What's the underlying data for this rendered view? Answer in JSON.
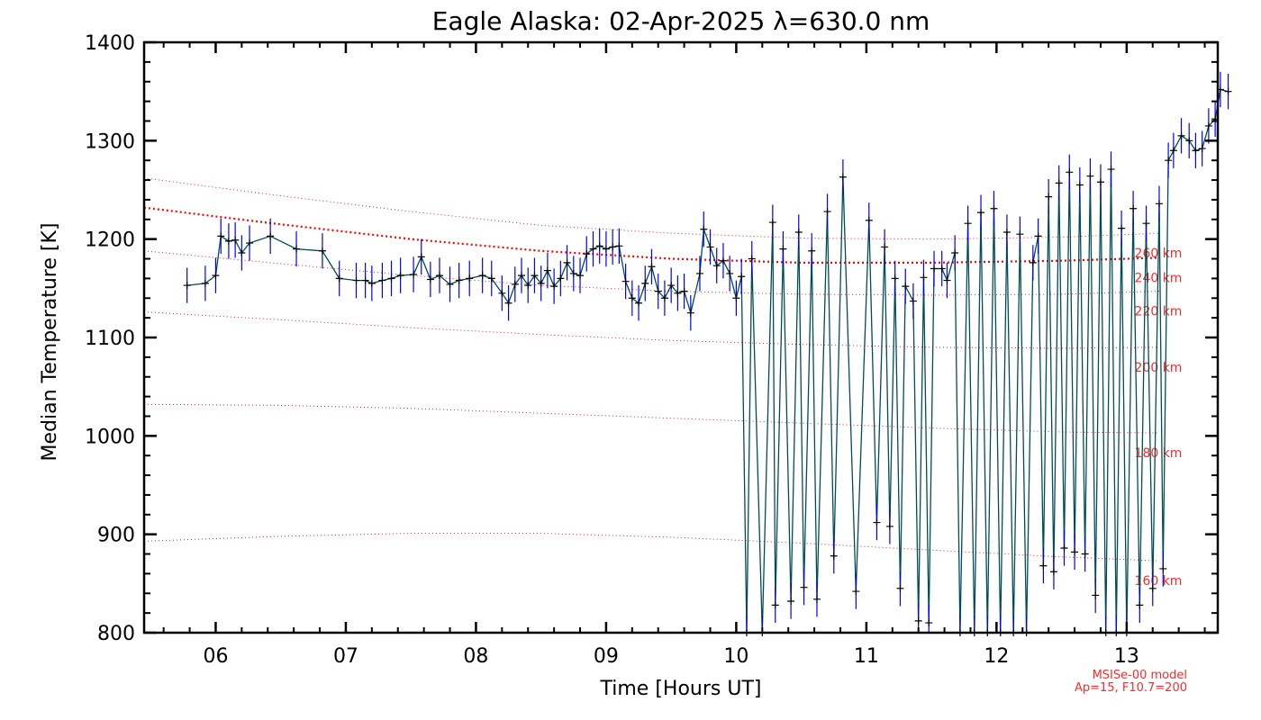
{
  "colors": {
    "background": "#ffffff",
    "axis": "#000000",
    "data_line": "#004d57",
    "error_bar": "#0000ff",
    "point_marker": "#000000",
    "model_line": "#ff0000",
    "model_text": "#ff2a2a"
  },
  "chart_data": {
    "type": "line",
    "title": "Eagle Alaska: 02-Apr-2025 λ=630.0 nm",
    "xlabel": "Time [Hours UT]",
    "ylabel": "Median Temperature [K]",
    "xlim": [
      5.45,
      13.7
    ],
    "ylim": [
      800,
      1400
    ],
    "x_ticks": [
      6,
      7,
      8,
      9,
      10,
      11,
      12,
      13
    ],
    "x_tick_labels": [
      "06",
      "07",
      "08",
      "09",
      "10",
      "11",
      "12",
      "13"
    ],
    "y_ticks": [
      800,
      900,
      1000,
      1100,
      1200,
      1300,
      1400
    ],
    "y_tick_labels": [
      "800",
      "900",
      "1000",
      "1100",
      "1200",
      "1300",
      "1400"
    ],
    "grid": false,
    "series": [
      {
        "error": 18,
        "points": [
          [
            5.78,
            1153
          ],
          [
            5.92,
            1155
          ],
          [
            6.0,
            1163
          ],
          [
            6.04,
            1203
          ],
          [
            6.1,
            1198
          ],
          [
            6.15,
            1199
          ],
          [
            6.2,
            1186
          ],
          [
            6.26,
            1196
          ],
          [
            6.42,
            1203
          ],
          [
            6.62,
            1190
          ],
          [
            6.82,
            1188
          ],
          [
            6.95,
            1160
          ],
          [
            7.08,
            1158
          ],
          [
            7.15,
            1158
          ],
          [
            7.2,
            1155
          ],
          [
            7.28,
            1158
          ],
          [
            7.35,
            1160
          ],
          [
            7.42,
            1163
          ],
          [
            7.52,
            1164
          ],
          [
            7.58,
            1182
          ],
          [
            7.65,
            1159
          ],
          [
            7.72,
            1163
          ],
          [
            7.8,
            1154
          ],
          [
            7.87,
            1158
          ],
          [
            7.95,
            1160
          ],
          [
            8.05,
            1163
          ],
          [
            8.12,
            1160
          ],
          [
            8.2,
            1145
          ],
          [
            8.25,
            1135
          ],
          [
            8.3,
            1154
          ],
          [
            8.35,
            1163
          ],
          [
            8.4,
            1153
          ],
          [
            8.45,
            1163
          ],
          [
            8.5,
            1155
          ],
          [
            8.55,
            1168
          ],
          [
            8.6,
            1152
          ],
          [
            8.65,
            1160
          ],
          [
            8.7,
            1176
          ],
          [
            8.75,
            1165
          ],
          [
            8.8,
            1163
          ],
          [
            8.85,
            1185
          ],
          [
            8.9,
            1190
          ],
          [
            8.95,
            1193
          ],
          [
            9.0,
            1190
          ],
          [
            9.05,
            1192
          ],
          [
            9.1,
            1193
          ],
          [
            9.15,
            1157
          ],
          [
            9.2,
            1140
          ],
          [
            9.25,
            1135
          ],
          [
            9.3,
            1155
          ],
          [
            9.35,
            1172
          ],
          [
            9.4,
            1147
          ],
          [
            9.45,
            1140
          ],
          [
            9.5,
            1153
          ],
          [
            9.55,
            1145
          ],
          [
            9.6,
            1147
          ],
          [
            9.65,
            1125
          ],
          [
            9.72,
            1165
          ],
          [
            9.75,
            1210
          ],
          [
            9.8,
            1192
          ],
          [
            9.85,
            1173
          ],
          [
            9.9,
            1178
          ],
          [
            9.95,
            1165
          ],
          [
            10.0,
            1140
          ],
          [
            10.04,
            1162
          ],
          [
            10.08,
            800
          ],
          [
            10.12,
            1180
          ],
          [
            10.2,
            800
          ],
          [
            10.28,
            1217
          ],
          [
            10.3,
            828
          ],
          [
            10.36,
            1190
          ],
          [
            10.42,
            832
          ],
          [
            10.48,
            1207
          ],
          [
            10.52,
            846
          ],
          [
            10.58,
            1188
          ],
          [
            10.62,
            834
          ],
          [
            10.7,
            1228
          ],
          [
            10.75,
            878
          ],
          [
            10.82,
            1263
          ],
          [
            10.92,
            842
          ],
          [
            11.02,
            1219
          ],
          [
            11.08,
            912
          ],
          [
            11.14,
            1192
          ],
          [
            11.18,
            908
          ],
          [
            11.22,
            1160
          ],
          [
            11.26,
            845
          ],
          [
            11.3,
            1152
          ],
          [
            11.36,
            1137
          ],
          [
            11.4,
            812
          ],
          [
            11.44,
            1161
          ],
          [
            11.48,
            810
          ],
          [
            11.52,
            1170
          ],
          [
            11.58,
            1170
          ],
          [
            11.62,
            1158
          ],
          [
            11.68,
            1186
          ],
          [
            11.72,
            800
          ],
          [
            11.78,
            1216
          ],
          [
            11.83,
            800
          ],
          [
            11.88,
            1227
          ],
          [
            11.93,
            800
          ],
          [
            11.98,
            1231
          ],
          [
            12.03,
            800
          ],
          [
            12.08,
            1207
          ],
          [
            12.13,
            800
          ],
          [
            12.18,
            1205
          ],
          [
            12.23,
            800
          ],
          [
            12.28,
            1176
          ],
          [
            12.32,
            1203
          ],
          [
            12.36,
            868
          ],
          [
            12.4,
            1243
          ],
          [
            12.44,
            862
          ],
          [
            12.48,
            1257
          ],
          [
            12.52,
            886
          ],
          [
            12.56,
            1268
          ],
          [
            12.6,
            882
          ],
          [
            12.64,
            1255
          ],
          [
            12.68,
            880
          ],
          [
            12.72,
            1264
          ],
          [
            12.76,
            838
          ],
          [
            12.8,
            1258
          ],
          [
            12.84,
            800
          ],
          [
            12.88,
            1271
          ],
          [
            12.92,
            800
          ],
          [
            12.96,
            1211
          ],
          [
            13.0,
            800
          ],
          [
            13.05,
            1231
          ],
          [
            13.1,
            828
          ],
          [
            13.15,
            1216
          ],
          [
            13.2,
            845
          ],
          [
            13.25,
            1236
          ],
          [
            13.28,
            865
          ],
          [
            13.32,
            1280
          ],
          [
            13.36,
            1290
          ],
          [
            13.42,
            1305
          ],
          [
            13.48,
            1300
          ],
          [
            13.53,
            1290
          ],
          [
            13.58,
            1292
          ],
          [
            13.63,
            1315
          ],
          [
            13.68,
            1322
          ],
          [
            13.72,
            1352
          ],
          [
            13.78,
            1350
          ]
        ]
      }
    ],
    "model_curves": [
      {
        "label": "260 km",
        "points": [
          [
            5.45,
            1262
          ],
          [
            6.5,
            1244
          ],
          [
            7.5,
            1228
          ],
          [
            8.5,
            1214
          ],
          [
            9.5,
            1206
          ],
          [
            10.5,
            1201
          ],
          [
            11.5,
            1200
          ],
          [
            12.5,
            1202
          ],
          [
            13.25,
            1206
          ]
        ]
      },
      {
        "label": "240 km",
        "emphasized": true,
        "points": [
          [
            5.45,
            1232
          ],
          [
            6.5,
            1215
          ],
          [
            7.5,
            1200
          ],
          [
            8.5,
            1188
          ],
          [
            9.5,
            1180
          ],
          [
            10.5,
            1176
          ],
          [
            11.5,
            1176
          ],
          [
            12.5,
            1178
          ],
          [
            13.25,
            1181
          ]
        ]
      },
      {
        "label": "220 km",
        "points": [
          [
            5.45,
            1188
          ],
          [
            6.5,
            1175
          ],
          [
            7.5,
            1163
          ],
          [
            8.5,
            1153
          ],
          [
            9.5,
            1147
          ],
          [
            10.5,
            1144
          ],
          [
            11.5,
            1143
          ],
          [
            12.5,
            1144
          ],
          [
            13.25,
            1147
          ]
        ]
      },
      {
        "label": "200 km",
        "points": [
          [
            5.45,
            1126
          ],
          [
            6.5,
            1118
          ],
          [
            7.5,
            1110
          ],
          [
            8.5,
            1103
          ],
          [
            9.5,
            1097
          ],
          [
            10.5,
            1093
          ],
          [
            11.5,
            1090
          ],
          [
            12.5,
            1089
          ],
          [
            13.25,
            1090
          ]
        ]
      },
      {
        "label": "180 km",
        "points": [
          [
            5.45,
            1032
          ],
          [
            6.5,
            1031
          ],
          [
            7.5,
            1028
          ],
          [
            8.5,
            1023
          ],
          [
            9.5,
            1018
          ],
          [
            10.5,
            1013
          ],
          [
            11.5,
            1008
          ],
          [
            12.5,
            1004
          ],
          [
            13.25,
            1003
          ]
        ]
      },
      {
        "label": "160 km",
        "points": [
          [
            5.45,
            893
          ],
          [
            6.5,
            898
          ],
          [
            7.5,
            901
          ],
          [
            8.5,
            901
          ],
          [
            9.5,
            897
          ],
          [
            10.5,
            891
          ],
          [
            11.5,
            884
          ],
          [
            12.5,
            877
          ],
          [
            13.25,
            873
          ]
        ]
      }
    ],
    "model_info": [
      "MSISe-00 model",
      "Ap=15, F10.7=200"
    ]
  }
}
